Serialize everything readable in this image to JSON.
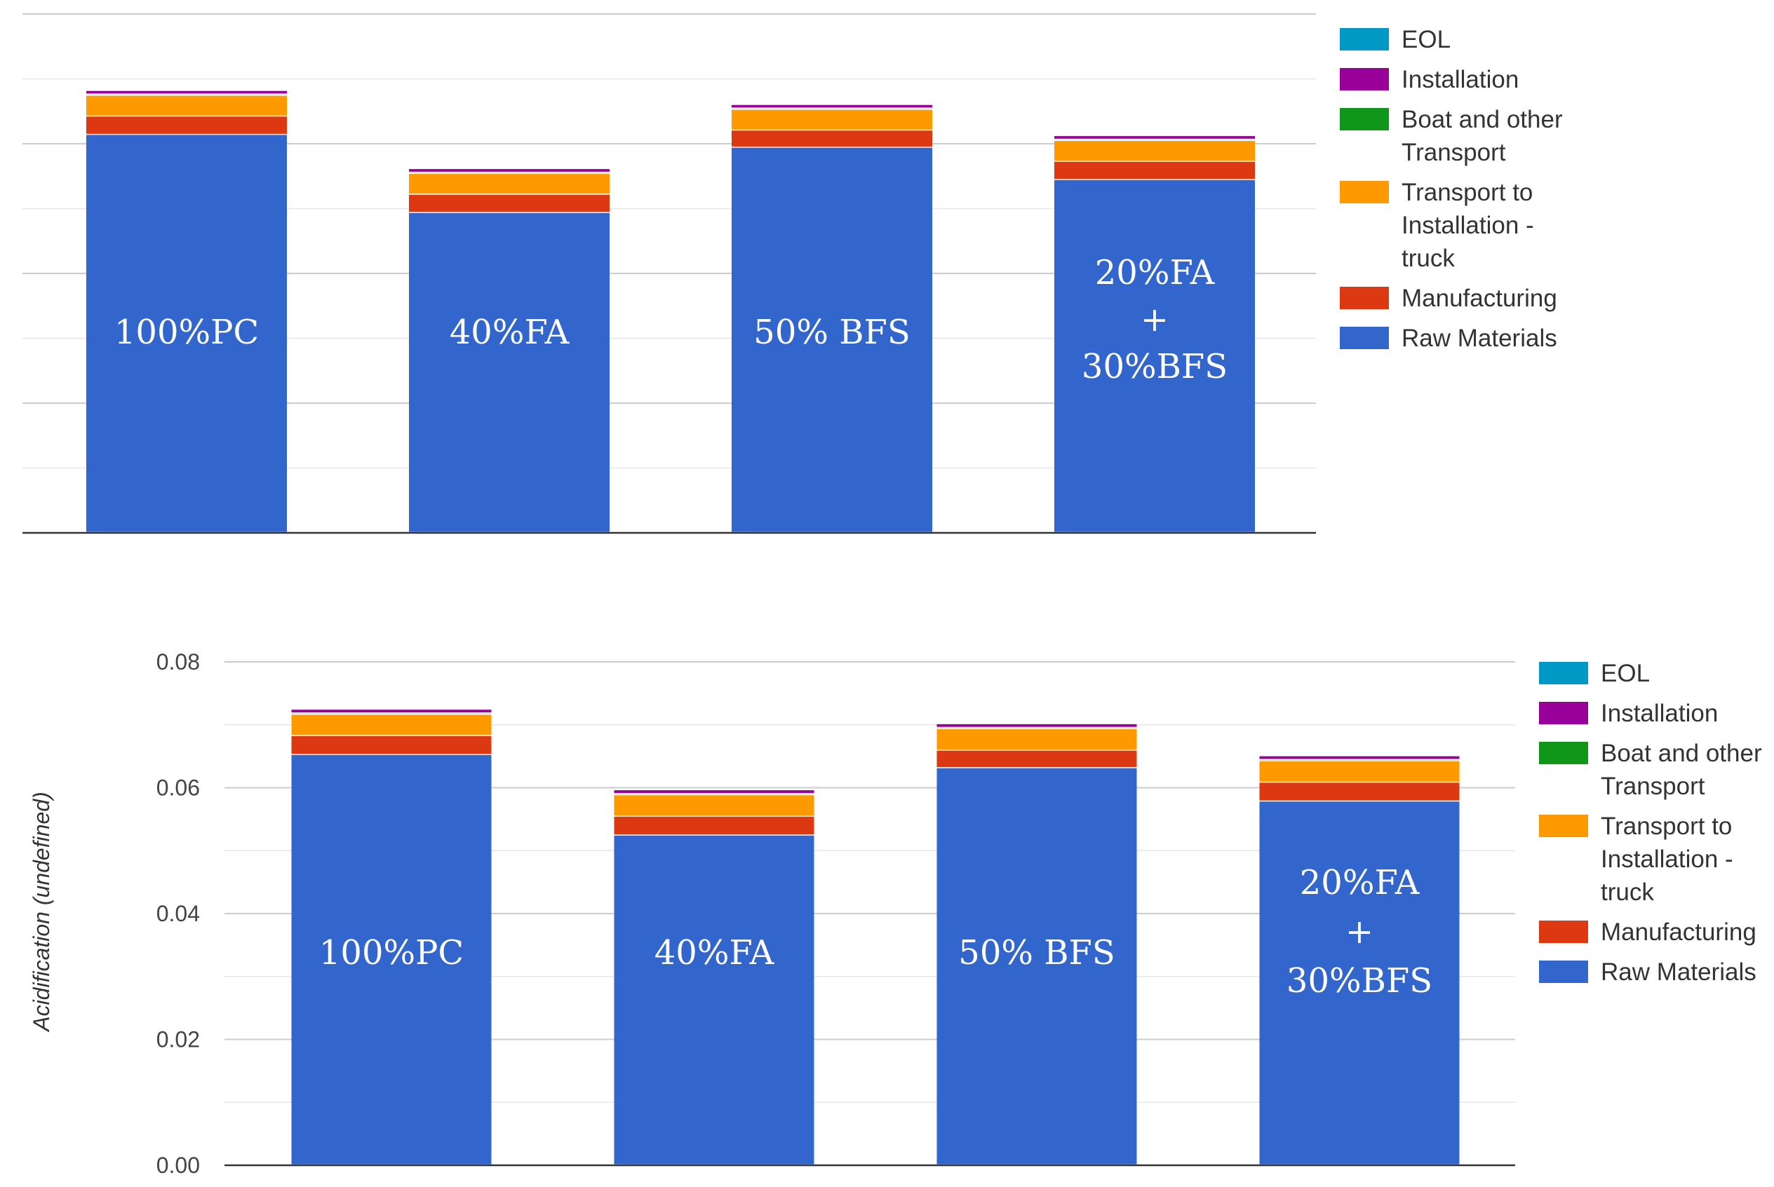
{
  "legend_entries": [
    {
      "label_lines": [
        "EOL"
      ],
      "color": "#0099c6"
    },
    {
      "label_lines": [
        "Installation"
      ],
      "color": "#990099"
    },
    {
      "label_lines": [
        "Boat and other",
        "Transport"
      ],
      "color": "#109618"
    },
    {
      "label_lines": [
        "Transport to",
        "Installation -",
        "truck"
      ],
      "color": "#ff9900"
    },
    {
      "label_lines": [
        "Manufacturing"
      ],
      "color": "#dc3912"
    },
    {
      "label_lines": [
        "Raw Materials"
      ],
      "color": "#3366cc"
    }
  ],
  "bar_labels": [
    [
      "100%PC"
    ],
    [
      "40%FA"
    ],
    [
      "50% BFS"
    ],
    [
      "20%FA",
      "+",
      "30%BFS"
    ]
  ],
  "chart_data": [
    {
      "type": "bar",
      "stacked": true,
      "title": "",
      "xlabel": "",
      "ylabel": "",
      "ylim": [
        0,
        0.085
      ],
      "categories": [
        "100%PC",
        "40%FA",
        "50% BFS",
        "20%FA + 30%BFS"
      ],
      "series": [
        {
          "name": "Raw Materials",
          "values": [
            0.0652,
            0.0524,
            0.0631,
            0.0578
          ]
        },
        {
          "name": "Manufacturing",
          "values": [
            0.003,
            0.003,
            0.0028,
            0.003
          ]
        },
        {
          "name": "Transport to Installation - truck",
          "values": [
            0.0034,
            0.0034,
            0.0034,
            0.0034
          ]
        },
        {
          "name": "Boat and other Transport",
          "values": [
            0.0002,
            0.0002,
            0.0002,
            0.0002
          ]
        },
        {
          "name": "Installation",
          "values": [
            0.0006,
            0.0006,
            0.0006,
            0.0006
          ]
        },
        {
          "name": "EOL",
          "values": [
            0,
            0,
            0,
            0
          ]
        }
      ],
      "grid": true,
      "y_ticks_visible": false,
      "legend": "right"
    },
    {
      "type": "bar",
      "stacked": true,
      "title": "",
      "xlabel": "",
      "ylabel": "Acidification (undefined)",
      "ylim": [
        0,
        0.08
      ],
      "yticks": [
        "0.00",
        "0.02",
        "0.04",
        "0.06",
        "0.08"
      ],
      "categories": [
        "100%PC",
        "40%FA",
        "50% BFS",
        "20%FA + 30%BFS"
      ],
      "series": [
        {
          "name": "Raw Materials",
          "values": [
            0.0652,
            0.0524,
            0.0631,
            0.0578
          ]
        },
        {
          "name": "Manufacturing",
          "values": [
            0.003,
            0.003,
            0.0028,
            0.003
          ]
        },
        {
          "name": "Transport to Installation - truck",
          "values": [
            0.0034,
            0.0034,
            0.0034,
            0.0034
          ]
        },
        {
          "name": "Boat and other Transport",
          "values": [
            0.0002,
            0.0002,
            0.0002,
            0.0002
          ]
        },
        {
          "name": "Installation",
          "values": [
            0.0006,
            0.0006,
            0.0006,
            0.0006
          ]
        },
        {
          "name": "EOL",
          "values": [
            0,
            0,
            0,
            0
          ]
        }
      ],
      "grid": true,
      "y_ticks_visible": true,
      "legend": "right"
    }
  ]
}
